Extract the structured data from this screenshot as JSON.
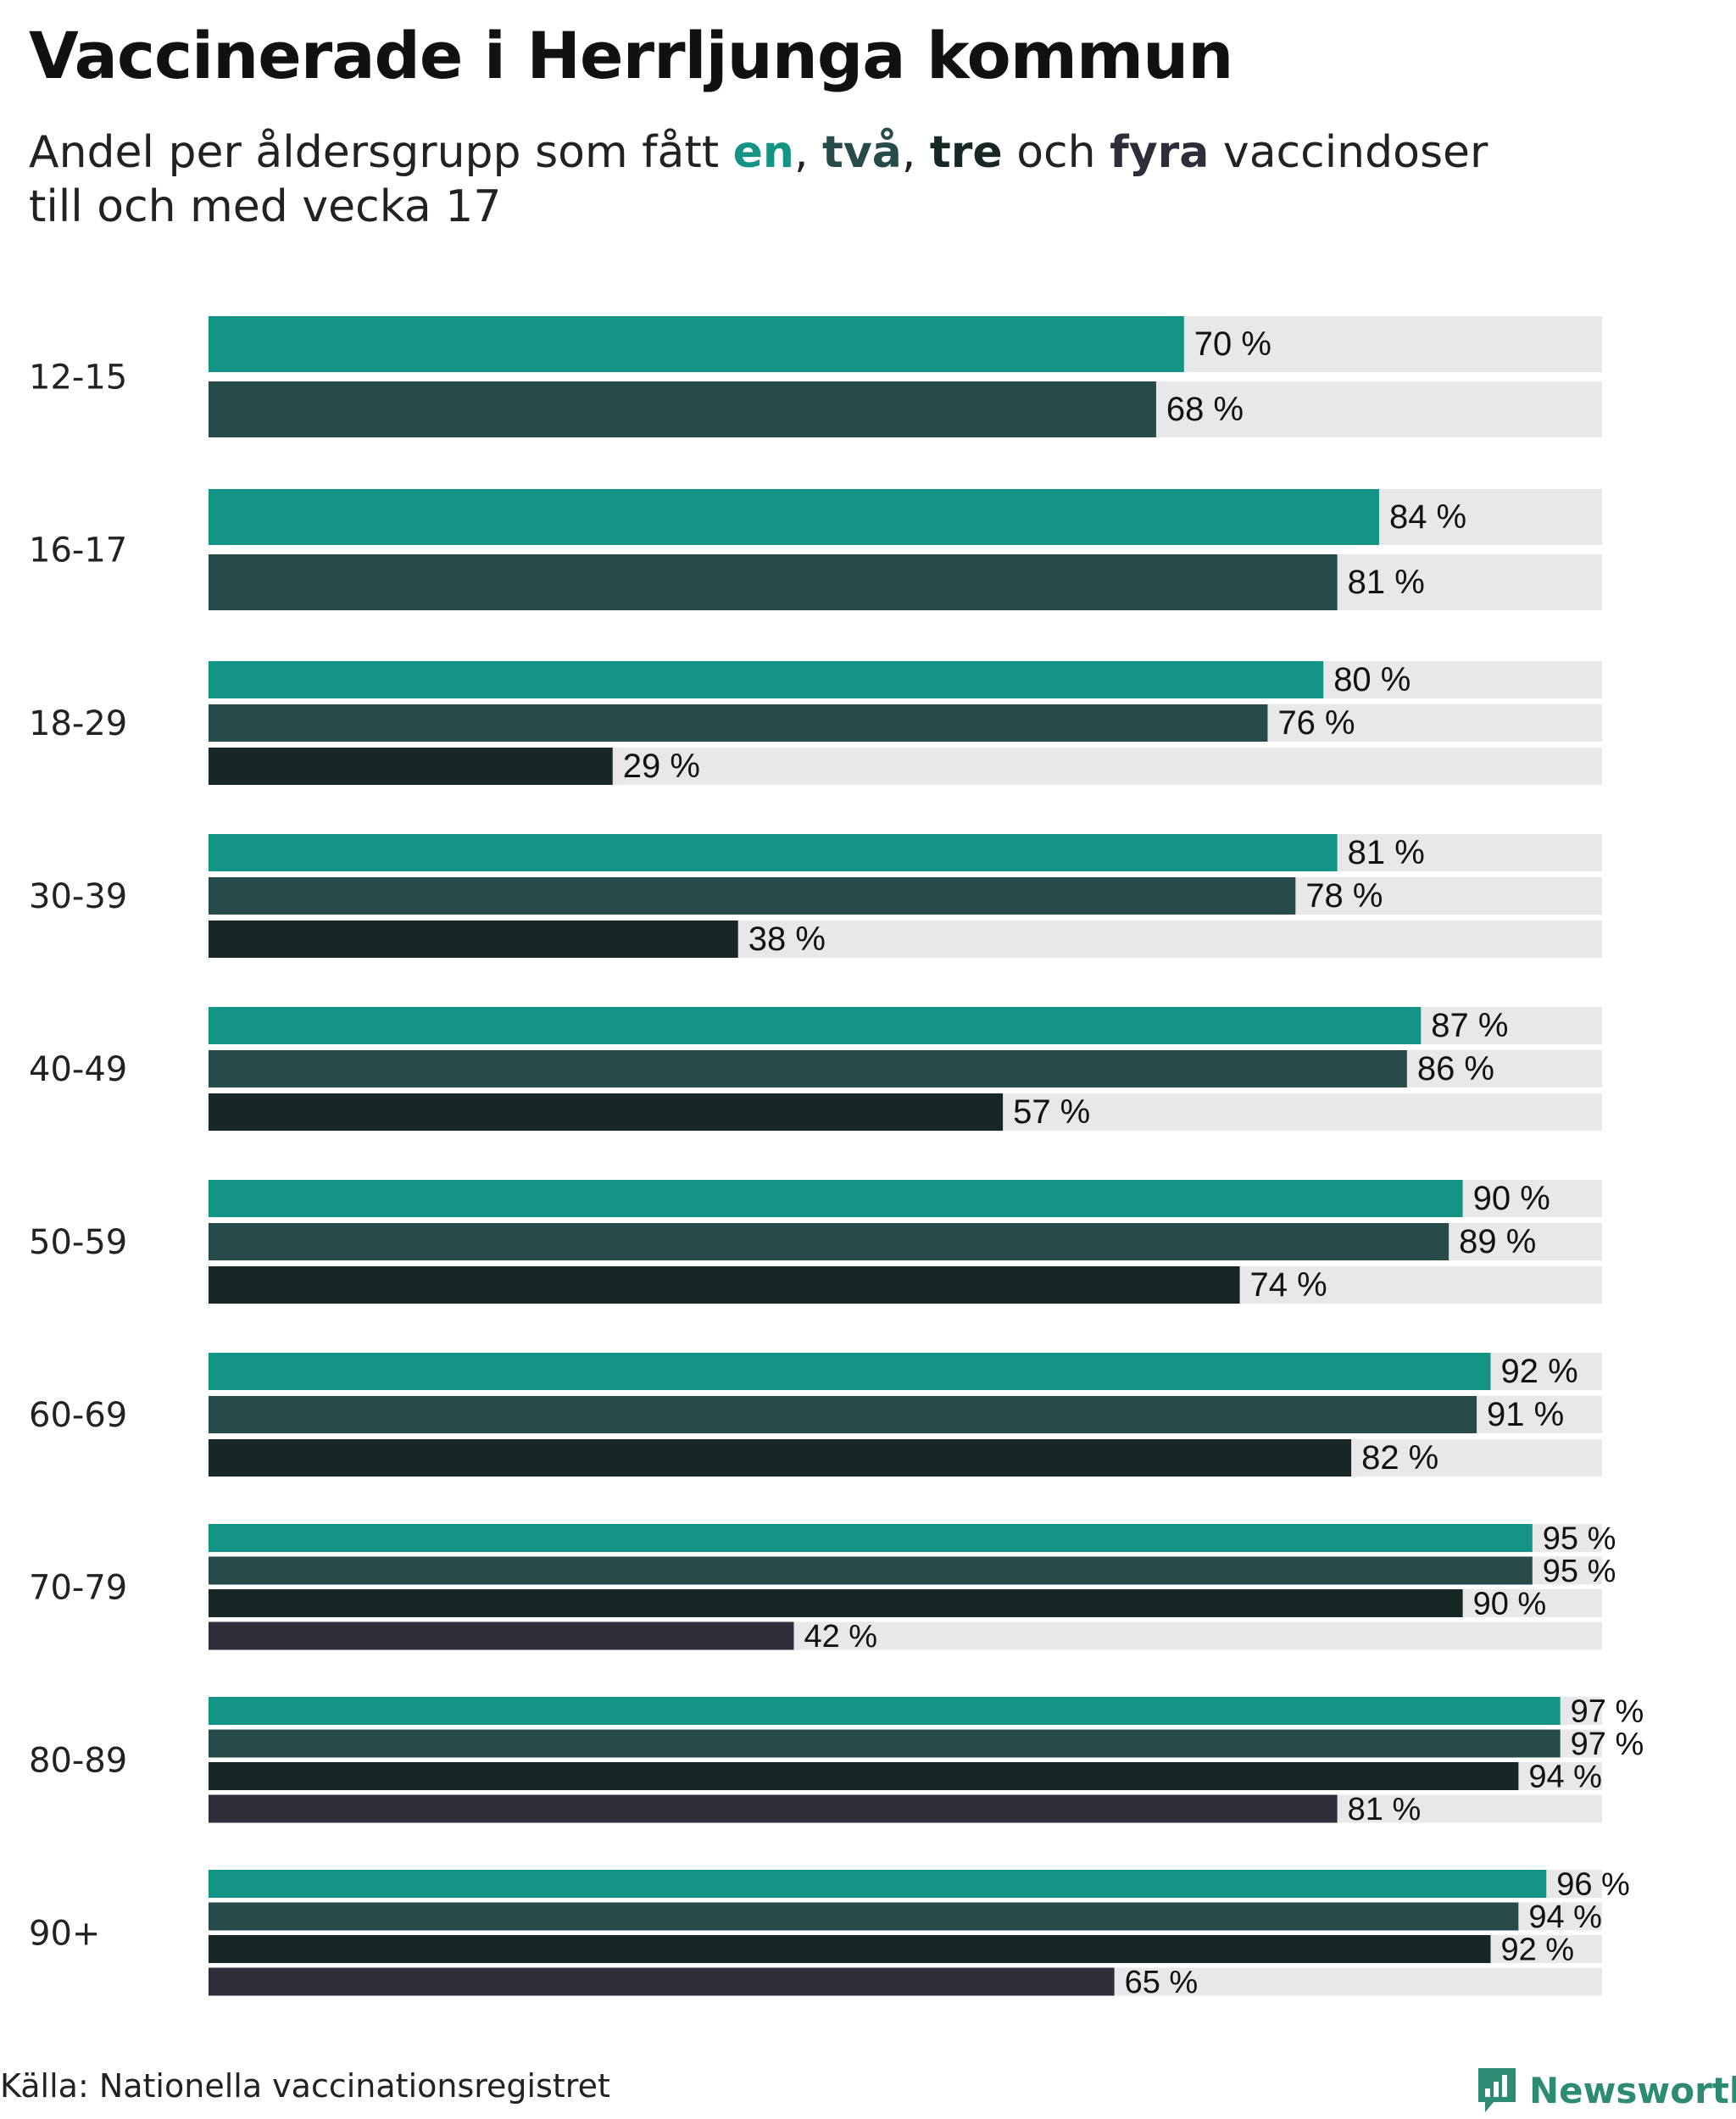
{
  "header": {
    "title": "Vaccinerade i Herrljunga kommun",
    "subtitle_lead": "Andel per åldersgrupp som fått ",
    "kw_one": "en",
    "sep_1": ", ",
    "kw_two": "två",
    "sep_2": ", ",
    "kw_three": "tre",
    "sep_3": " och ",
    "kw_four": "fyra",
    "subtitle_tail": " vaccindoser",
    "subtitle_line2": "till och med vecka 17"
  },
  "colors": {
    "dose1": "#139484",
    "dose2": "#264b48",
    "dose3": "#172725",
    "dose4": "#2e2e3a",
    "track": "#e8e8e8"
  },
  "chart_data": {
    "type": "bar",
    "orientation": "horizontal",
    "title": "Vaccinerade i Herrljunga kommun",
    "subtitle": "Andel per åldersgrupp som fått en, två, tre och fyra vaccindoser till och med vecka 17",
    "xlim": [
      0,
      100
    ],
    "value_suffix": " %",
    "series_names": [
      "en",
      "två",
      "tre",
      "fyra"
    ],
    "groups": [
      {
        "label": "12-15",
        "values": [
          70,
          68
        ]
      },
      {
        "label": "16-17",
        "values": [
          84,
          81
        ]
      },
      {
        "label": "18-29",
        "values": [
          80,
          76,
          29
        ]
      },
      {
        "label": "30-39",
        "values": [
          81,
          78,
          38
        ]
      },
      {
        "label": "40-49",
        "values": [
          87,
          86,
          57
        ]
      },
      {
        "label": "50-59",
        "values": [
          90,
          89,
          74
        ]
      },
      {
        "label": "60-69",
        "values": [
          92,
          91,
          82
        ]
      },
      {
        "label": "70-79",
        "values": [
          95,
          95,
          90,
          42
        ]
      },
      {
        "label": "80-89",
        "values": [
          97,
          97,
          94,
          81
        ]
      },
      {
        "label": "90+",
        "values": [
          96,
          94,
          92,
          65
        ]
      }
    ]
  },
  "footer": {
    "source": "Källa: Nationella vaccinationsregistret",
    "brand": "Newsworthy"
  }
}
